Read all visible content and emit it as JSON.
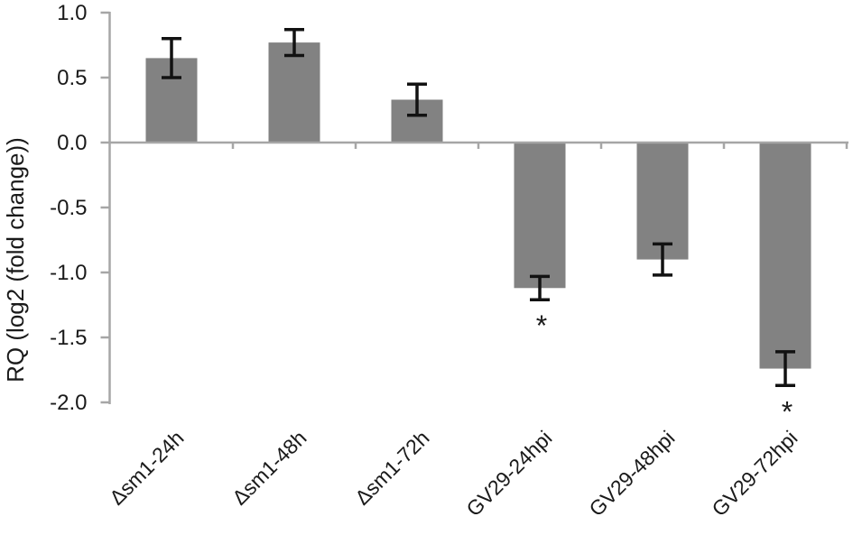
{
  "chart_data": {
    "type": "bar",
    "title": "",
    "xlabel": "",
    "ylabel": "RQ (log2 (fold change))",
    "ylim": [
      -2.0,
      1.0
    ],
    "ytick_step": 0.5,
    "yticks": [
      1.0,
      0.5,
      0.0,
      -0.5,
      -1.0,
      -1.5,
      -2.0
    ],
    "ytick_labels": [
      "1.0",
      "0.5",
      "0.0",
      "-0.5",
      "-1.0",
      "-1.5",
      "-2.0"
    ],
    "categories": [
      "Δsm1-24h",
      "Δsm1-48h",
      "Δsm1-72h",
      "GV29-24hpi",
      "GV29-48hpi",
      "GV29-72hpi"
    ],
    "values": [
      0.65,
      0.77,
      0.33,
      -1.12,
      -0.9,
      -1.74
    ],
    "errors": [
      0.15,
      0.1,
      0.12,
      0.09,
      0.12,
      0.13
    ],
    "significance": [
      "",
      "",
      "",
      "*",
      "",
      "*"
    ],
    "legend": null,
    "grid": false,
    "colors": {
      "bar_fill": "#828282",
      "axis_line": "#a6a6a6",
      "error_bar": "#121212",
      "label_text": "#1a1a1a"
    }
  }
}
